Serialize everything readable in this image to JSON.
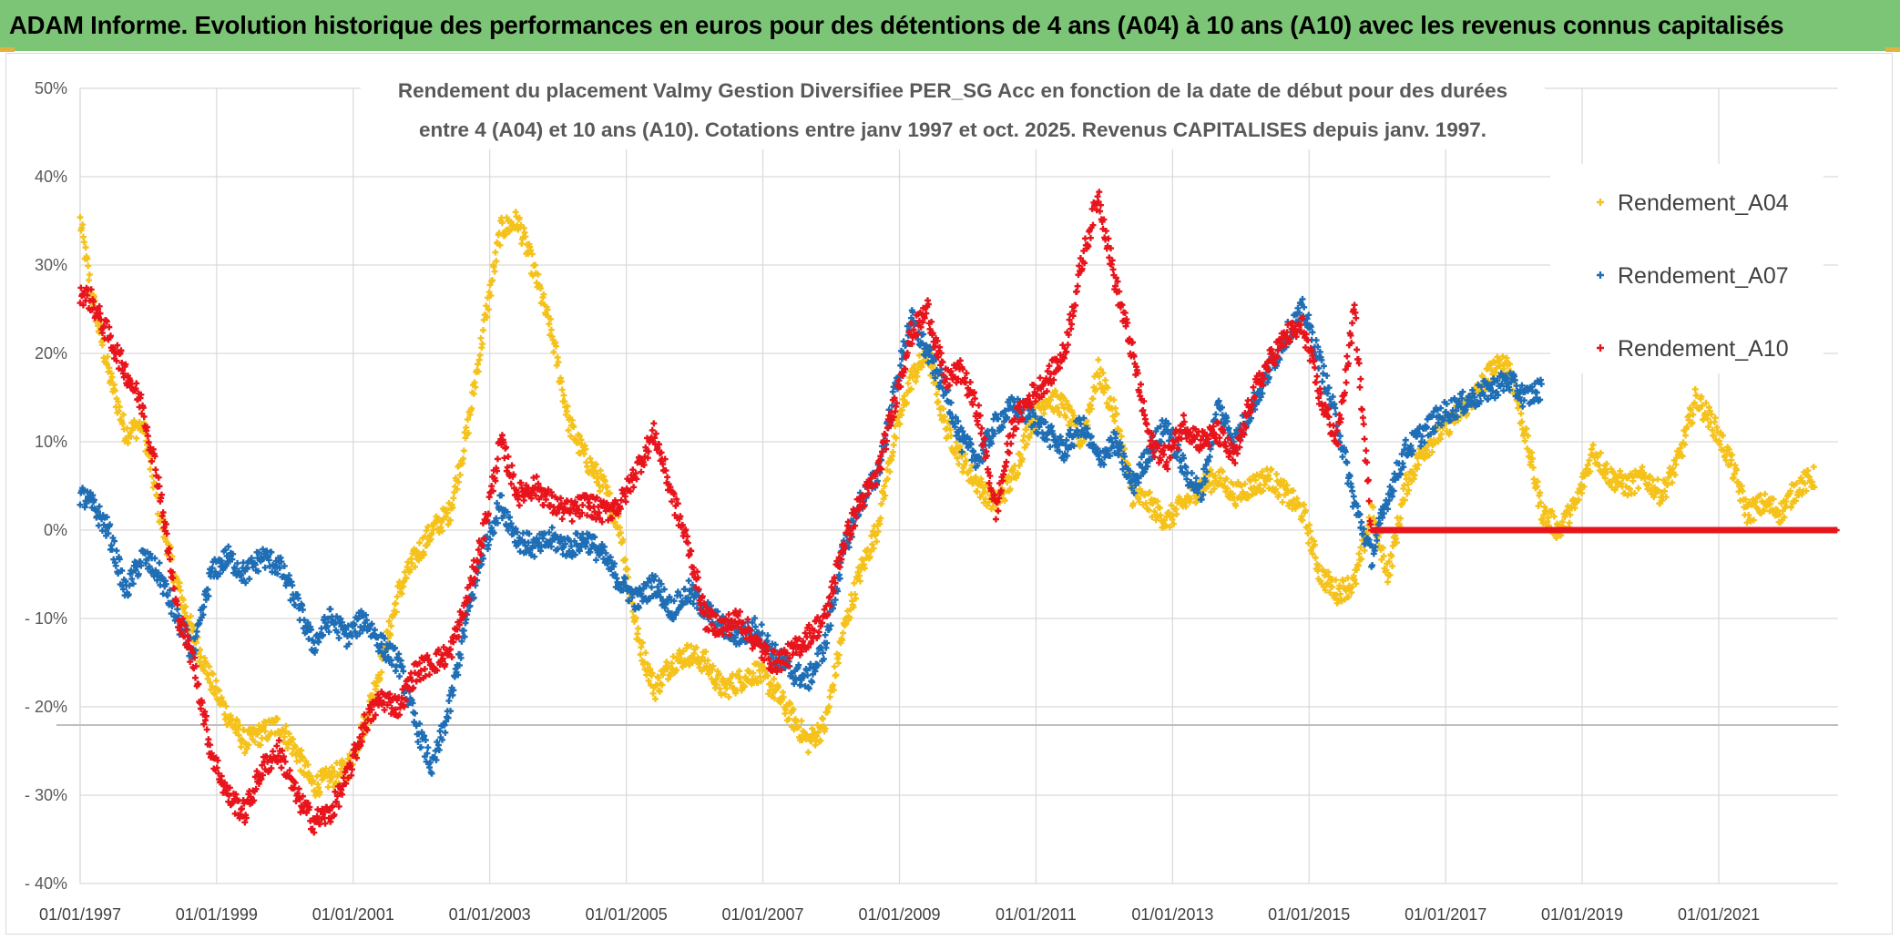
{
  "banner": {
    "title": "ADAM Informe. Evolution historique des performances en euros pour des détentions de 4 ans (A04) à 10 ans (A10) avec les revenus connus capitalisés"
  },
  "chart_data": {
    "type": "scatter",
    "title_lines": [
      "Rendement du placement Valmy Gestion Diversifiee PER_SG Acc en fonction de la date de début pour des durées",
      "entre 4 (A04) et 10 ans (A10). Cotations entre janv 1997 et oct. 2025. Revenus CAPITALISES depuis janv. 1997."
    ],
    "xlabel": "",
    "ylabel": "",
    "x_tick_labels": [
      "01/01/1997",
      "01/01/1999",
      "01/01/2001",
      "01/01/2003",
      "01/01/2005",
      "01/01/2007",
      "01/01/2009",
      "01/01/2011",
      "01/01/2013",
      "01/01/2015",
      "01/01/2017",
      "01/01/2019",
      "01/01/2021"
    ],
    "x_range": [
      "1997-01-01",
      "2022-10-01"
    ],
    "y_tick_labels": [
      "50%",
      "40%",
      "30%",
      "20%",
      "10%",
      "0%",
      "- 10%",
      "- 20%",
      "- 30%",
      "- 40%"
    ],
    "ylim": [
      -40,
      50
    ],
    "grid": true,
    "legend_position": "top-right",
    "marker": "+",
    "series": [
      {
        "name": "Rendement_A04",
        "color": "#f5c21b",
        "points": [
          [
            "1997-01-01",
            35
          ],
          [
            "1997-03-01",
            27
          ],
          [
            "1997-06-01",
            18
          ],
          [
            "1997-09-01",
            11
          ],
          [
            "1997-12-01",
            12
          ],
          [
            "1998-03-01",
            2
          ],
          [
            "1998-06-01",
            -6
          ],
          [
            "1998-09-01",
            -12
          ],
          [
            "1998-12-01",
            -17
          ],
          [
            "1999-03-01",
            -21
          ],
          [
            "1999-06-01",
            -24
          ],
          [
            "1999-09-01",
            -23
          ],
          [
            "1999-12-01",
            -22
          ],
          [
            "2000-03-01",
            -25
          ],
          [
            "2000-06-01",
            -29
          ],
          [
            "2000-09-01",
            -28
          ],
          [
            "2000-12-01",
            -27
          ],
          [
            "2001-03-01",
            -22
          ],
          [
            "2001-06-01",
            -15
          ],
          [
            "2001-09-01",
            -7
          ],
          [
            "2001-12-01",
            -3
          ],
          [
            "2002-03-01",
            0
          ],
          [
            "2002-06-01",
            2
          ],
          [
            "2002-09-01",
            11
          ],
          [
            "2002-12-01",
            23
          ],
          [
            "2003-03-01",
            34
          ],
          [
            "2003-06-01",
            35
          ],
          [
            "2003-09-01",
            29
          ],
          [
            "2003-12-01",
            22
          ],
          [
            "2004-03-01",
            12
          ],
          [
            "2004-06-01",
            8
          ],
          [
            "2004-09-01",
            5
          ],
          [
            "2004-12-01",
            0
          ],
          [
            "2005-03-01",
            -12
          ],
          [
            "2005-06-01",
            -18
          ],
          [
            "2005-09-01",
            -15
          ],
          [
            "2005-12-01",
            -14
          ],
          [
            "2006-03-01",
            -15
          ],
          [
            "2006-06-01",
            -18
          ],
          [
            "2006-09-01",
            -17
          ],
          [
            "2006-12-01",
            -16
          ],
          [
            "2007-03-01",
            -18
          ],
          [
            "2007-06-01",
            -21
          ],
          [
            "2007-09-01",
            -24
          ],
          [
            "2007-12-01",
            -22
          ],
          [
            "2008-03-01",
            -12
          ],
          [
            "2008-06-01",
            -5
          ],
          [
            "2008-09-01",
            0
          ],
          [
            "2008-12-01",
            10
          ],
          [
            "2009-03-01",
            17
          ],
          [
            "2009-06-01",
            20
          ],
          [
            "2009-09-01",
            12
          ],
          [
            "2009-12-01",
            8
          ],
          [
            "2010-03-01",
            5
          ],
          [
            "2010-06-01",
            3
          ],
          [
            "2010-09-01",
            6
          ],
          [
            "2010-12-01",
            12
          ],
          [
            "2011-03-01",
            15
          ],
          [
            "2011-06-01",
            14
          ],
          [
            "2011-09-01",
            10
          ],
          [
            "2011-12-01",
            18
          ],
          [
            "2012-03-01",
            13
          ],
          [
            "2012-06-01",
            4
          ],
          [
            "2012-09-01",
            3
          ],
          [
            "2012-12-01",
            1
          ],
          [
            "2013-03-01",
            3
          ],
          [
            "2013-06-01",
            5
          ],
          [
            "2013-09-01",
            6
          ],
          [
            "2013-12-01",
            4
          ],
          [
            "2014-03-01",
            5
          ],
          [
            "2014-06-01",
            6
          ],
          [
            "2014-09-01",
            4
          ],
          [
            "2014-12-01",
            2
          ],
          [
            "2015-03-01",
            -5
          ],
          [
            "2015-06-01",
            -7
          ],
          [
            "2015-09-01",
            -6
          ],
          [
            "2015-12-01",
            2
          ],
          [
            "2016-03-01",
            -5
          ],
          [
            "2016-06-01",
            5
          ],
          [
            "2016-09-01",
            9
          ],
          [
            "2016-12-01",
            11
          ],
          [
            "2017-03-01",
            13
          ],
          [
            "2017-06-01",
            15
          ],
          [
            "2017-09-01",
            18
          ],
          [
            "2017-12-01",
            19
          ],
          [
            "2018-03-01",
            11
          ],
          [
            "2018-06-01",
            2
          ],
          [
            "2018-09-01",
            0
          ],
          [
            "2018-12-01",
            3
          ],
          [
            "2019-03-01",
            9
          ],
          [
            "2019-06-01",
            6
          ],
          [
            "2019-09-01",
            5
          ],
          [
            "2019-12-01",
            6
          ],
          [
            "2020-03-01",
            4
          ],
          [
            "2020-06-01",
            8
          ],
          [
            "2020-09-01",
            15
          ],
          [
            "2020-12-01",
            12
          ],
          [
            "2021-03-01",
            8
          ],
          [
            "2021-06-01",
            2
          ],
          [
            "2021-09-01",
            3
          ],
          [
            "2021-12-01",
            2
          ],
          [
            "2022-03-01",
            5
          ],
          [
            "2022-06-01",
            6
          ]
        ]
      },
      {
        "name": "Rendement_A07",
        "color": "#1f6eb5",
        "points": [
          [
            "1997-01-01",
            4
          ],
          [
            "1997-03-01",
            3
          ],
          [
            "1997-06-01",
            0
          ],
          [
            "1997-09-01",
            -7
          ],
          [
            "1997-12-01",
            -3
          ],
          [
            "1998-03-01",
            -5
          ],
          [
            "1998-06-01",
            -10
          ],
          [
            "1998-09-01",
            -14
          ],
          [
            "1998-12-01",
            -5
          ],
          [
            "1999-03-01",
            -3
          ],
          [
            "1999-06-01",
            -5
          ],
          [
            "1999-09-01",
            -3
          ],
          [
            "1999-12-01",
            -4
          ],
          [
            "2000-03-01",
            -8
          ],
          [
            "2000-06-01",
            -13
          ],
          [
            "2000-09-01",
            -10
          ],
          [
            "2000-12-01",
            -12
          ],
          [
            "2001-03-01",
            -10
          ],
          [
            "2001-06-01",
            -13
          ],
          [
            "2001-09-01",
            -15
          ],
          [
            "2001-12-01",
            -22
          ],
          [
            "2002-03-01",
            -27
          ],
          [
            "2002-06-01",
            -20
          ],
          [
            "2002-09-01",
            -10
          ],
          [
            "2002-12-01",
            -2
          ],
          [
            "2003-03-01",
            3
          ],
          [
            "2003-06-01",
            -1
          ],
          [
            "2003-09-01",
            -2
          ],
          [
            "2003-12-01",
            -1
          ],
          [
            "2004-03-01",
            -2
          ],
          [
            "2004-06-01",
            -1
          ],
          [
            "2004-09-01",
            -3
          ],
          [
            "2004-12-01",
            -6
          ],
          [
            "2005-03-01",
            -8
          ],
          [
            "2005-06-01",
            -6
          ],
          [
            "2005-09-01",
            -9
          ],
          [
            "2005-12-01",
            -7
          ],
          [
            "2006-03-01",
            -9
          ],
          [
            "2006-06-01",
            -11
          ],
          [
            "2006-09-01",
            -12
          ],
          [
            "2006-12-01",
            -11
          ],
          [
            "2007-03-01",
            -14
          ],
          [
            "2007-06-01",
            -16
          ],
          [
            "2007-09-01",
            -17
          ],
          [
            "2007-12-01",
            -13
          ],
          [
            "2008-03-01",
            -3
          ],
          [
            "2008-06-01",
            3
          ],
          [
            "2008-09-01",
            6
          ],
          [
            "2008-12-01",
            15
          ],
          [
            "2009-03-01",
            24
          ],
          [
            "2009-06-01",
            20
          ],
          [
            "2009-09-01",
            16
          ],
          [
            "2009-12-01",
            10
          ],
          [
            "2010-03-01",
            8
          ],
          [
            "2010-06-01",
            12
          ],
          [
            "2010-09-01",
            14
          ],
          [
            "2010-12-01",
            13
          ],
          [
            "2011-03-01",
            11
          ],
          [
            "2011-06-01",
            9
          ],
          [
            "2011-09-01",
            12
          ],
          [
            "2011-12-01",
            8
          ],
          [
            "2012-03-01",
            10
          ],
          [
            "2012-06-01",
            5
          ],
          [
            "2012-09-01",
            9
          ],
          [
            "2012-12-01",
            12
          ],
          [
            "2013-03-01",
            7
          ],
          [
            "2013-06-01",
            4
          ],
          [
            "2013-09-01",
            14
          ],
          [
            "2013-12-01",
            10
          ],
          [
            "2014-03-01",
            14
          ],
          [
            "2014-06-01",
            18
          ],
          [
            "2014-09-01",
            22
          ],
          [
            "2014-12-01",
            25
          ],
          [
            "2015-03-01",
            19
          ],
          [
            "2015-06-01",
            12
          ],
          [
            "2015-09-01",
            3
          ],
          [
            "2015-12-01",
            -3
          ],
          [
            "2016-03-01",
            4
          ],
          [
            "2016-06-01",
            9
          ],
          [
            "2016-09-01",
            11
          ],
          [
            "2016-12-01",
            13
          ],
          [
            "2017-03-01",
            14
          ],
          [
            "2017-06-01",
            15
          ],
          [
            "2017-09-01",
            16
          ],
          [
            "2017-12-01",
            17
          ],
          [
            "2018-03-01",
            15
          ],
          [
            "2018-06-01",
            16
          ]
        ]
      },
      {
        "name": "Rendement_A10",
        "color": "#e8141c",
        "points": [
          [
            "1997-01-01",
            27
          ],
          [
            "1997-03-01",
            26
          ],
          [
            "1997-06-01",
            22
          ],
          [
            "1997-09-01",
            18
          ],
          [
            "1997-12-01",
            14
          ],
          [
            "1998-03-01",
            5
          ],
          [
            "1998-06-01",
            -9
          ],
          [
            "1998-09-01",
            -15
          ],
          [
            "1998-12-01",
            -25
          ],
          [
            "1999-03-01",
            -30
          ],
          [
            "1999-06-01",
            -32
          ],
          [
            "1999-09-01",
            -27
          ],
          [
            "1999-12-01",
            -25
          ],
          [
            "2000-03-01",
            -30
          ],
          [
            "2000-06-01",
            -33
          ],
          [
            "2000-09-01",
            -32
          ],
          [
            "2000-12-01",
            -28
          ],
          [
            "2001-03-01",
            -22
          ],
          [
            "2001-06-01",
            -19
          ],
          [
            "2001-09-01",
            -20
          ],
          [
            "2001-12-01",
            -16
          ],
          [
            "2002-03-01",
            -15
          ],
          [
            "2002-06-01",
            -14
          ],
          [
            "2002-09-01",
            -8
          ],
          [
            "2002-12-01",
            0
          ],
          [
            "2003-03-01",
            10
          ],
          [
            "2003-06-01",
            4
          ],
          [
            "2003-09-01",
            5
          ],
          [
            "2003-12-01",
            3
          ],
          [
            "2004-03-01",
            2
          ],
          [
            "2004-06-01",
            3
          ],
          [
            "2004-09-01",
            2
          ],
          [
            "2004-12-01",
            3
          ],
          [
            "2005-03-01",
            7
          ],
          [
            "2005-06-01",
            11
          ],
          [
            "2005-09-01",
            4
          ],
          [
            "2005-12-01",
            -2
          ],
          [
            "2006-03-01",
            -10
          ],
          [
            "2006-06-01",
            -11
          ],
          [
            "2006-09-01",
            -10
          ],
          [
            "2006-12-01",
            -13
          ],
          [
            "2007-03-01",
            -15
          ],
          [
            "2007-06-01",
            -14
          ],
          [
            "2007-09-01",
            -12
          ],
          [
            "2007-12-01",
            -10
          ],
          [
            "2008-03-01",
            -2
          ],
          [
            "2008-06-01",
            3
          ],
          [
            "2008-09-01",
            6
          ],
          [
            "2008-12-01",
            14
          ],
          [
            "2009-03-01",
            22
          ],
          [
            "2009-06-01",
            25
          ],
          [
            "2009-09-01",
            17
          ],
          [
            "2009-12-01",
            18
          ],
          [
            "2010-03-01",
            13
          ],
          [
            "2010-06-01",
            2
          ],
          [
            "2010-09-01",
            12
          ],
          [
            "2010-12-01",
            15
          ],
          [
            "2011-03-01",
            17
          ],
          [
            "2011-06-01",
            20
          ],
          [
            "2011-09-01",
            30
          ],
          [
            "2011-12-01",
            38
          ],
          [
            "2012-03-01",
            28
          ],
          [
            "2012-06-01",
            20
          ],
          [
            "2012-09-01",
            10
          ],
          [
            "2012-12-01",
            8
          ],
          [
            "2013-03-01",
            12
          ],
          [
            "2013-06-01",
            10
          ],
          [
            "2013-09-01",
            11
          ],
          [
            "2013-12-01",
            8
          ],
          [
            "2014-03-01",
            15
          ],
          [
            "2014-06-01",
            19
          ],
          [
            "2014-09-01",
            22
          ],
          [
            "2014-12-01",
            23
          ],
          [
            "2015-03-01",
            15
          ],
          [
            "2015-06-01",
            10
          ],
          [
            "2015-09-01",
            25
          ],
          [
            "2015-12-01",
            0
          ],
          [
            "2022-10-01",
            0
          ]
        ]
      }
    ]
  }
}
